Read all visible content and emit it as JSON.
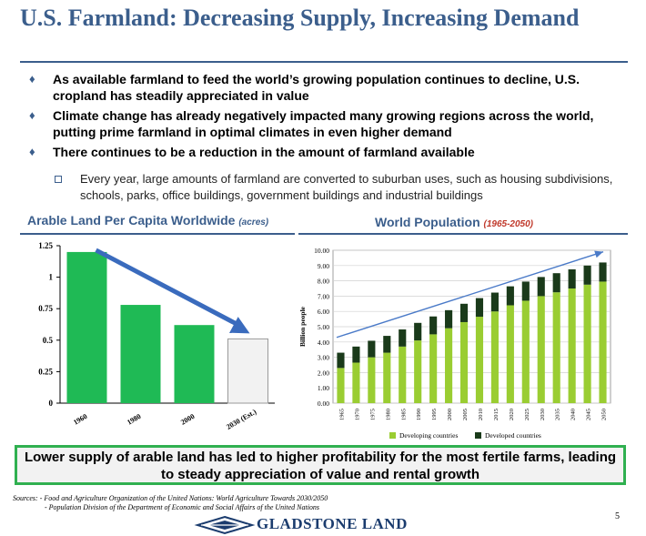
{
  "slide": {
    "title": "U.S. Farmland:  Decreasing Supply, Increasing Demand",
    "bullets": [
      "As available farmland to feed the world’s growing population continues to decline, U.S. cropland has steadily appreciated in value",
      "Climate change has already negatively impacted many growing regions across the world, putting prime farmland in optimal climates in even higher demand",
      "There continues to be a reduction in the amount of farmland available"
    ],
    "sub_bullet": "Every year, large amounts of farmland are converted to suburban uses, such as housing subdivisions, schools, parks, office buildings, government buildings and industrial buildings",
    "callout": "Lower supply of arable land has led to higher profitability for the most fertile farms, leading to steady appreciation of value and rental growth",
    "sources_line1": "Sources:  - Food and Agriculture Organization of the United Nations: World Agriculture Towards 2030/2050",
    "sources_line2": "- Population Division of the Department of Economic and Social Affairs of the United Nations",
    "page_number": "5",
    "logo_text": "GLADSTONE LAND"
  },
  "colors": {
    "title_blue": "#3b5e8c",
    "bar_green": "#1fba55",
    "bar_est": "#f2f2f2",
    "developing": "#9acd32",
    "developed": "#1a3a1a",
    "arrow_blue": "#3a6bbd",
    "callout_border": "#30b050"
  },
  "chart_data": [
    {
      "type": "bar",
      "title": "Arable Land Per Capita Worldwide",
      "title_unit": "(acres)",
      "categories": [
        "1960",
        "1980",
        "2000",
        "2030 (Est.)"
      ],
      "values": [
        1.2,
        0.78,
        0.62,
        0.51
      ],
      "ylim": [
        0,
        1.25
      ],
      "yticks": [
        "0",
        "0.25",
        "0.5",
        "0.75",
        "1",
        "1.25"
      ],
      "ytick_values": [
        0,
        0.25,
        0.5,
        0.75,
        1,
        1.25
      ],
      "grid": false,
      "annotation": "downward trend arrow"
    },
    {
      "type": "bar",
      "stacked": true,
      "title": "World Population",
      "title_unit": "(1965-2050)",
      "ylabel": "Billion people",
      "categories": [
        "1965",
        "1970",
        "1975",
        "1980",
        "1985",
        "1990",
        "1995",
        "2000",
        "2005",
        "2010",
        "2015",
        "2020",
        "2025",
        "2030",
        "2035",
        "2040",
        "2045",
        "2050"
      ],
      "series": [
        {
          "name": "Developing countries",
          "values": [
            2.3,
            2.65,
            3.0,
            3.3,
            3.7,
            4.1,
            4.5,
            4.9,
            5.3,
            5.65,
            6.0,
            6.4,
            6.7,
            7.0,
            7.25,
            7.5,
            7.75,
            7.95
          ]
        },
        {
          "name": "Developed countries",
          "values": [
            1.0,
            1.05,
            1.08,
            1.1,
            1.12,
            1.15,
            1.17,
            1.18,
            1.2,
            1.22,
            1.23,
            1.24,
            1.25,
            1.25,
            1.25,
            1.25,
            1.25,
            1.25
          ]
        }
      ],
      "ylim": [
        0,
        10
      ],
      "yticks": [
        "0.00",
        "1.00",
        "2.00",
        "3.00",
        "4.00",
        "5.00",
        "6.00",
        "7.00",
        "8.00",
        "9.00",
        "10.00"
      ],
      "ytick_values": [
        0,
        1,
        2,
        3,
        4,
        5,
        6,
        7,
        8,
        9,
        10
      ],
      "grid": true,
      "legend": "bottom",
      "annotation": "upward trend arrow"
    }
  ]
}
